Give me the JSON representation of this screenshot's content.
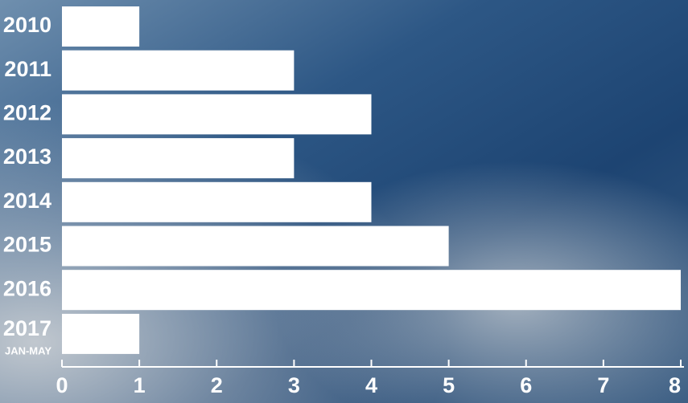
{
  "chart_data": {
    "type": "bar",
    "orientation": "horizontal",
    "categories": [
      "2010",
      "2011",
      "2012",
      "2013",
      "2014",
      "2015",
      "2016",
      "2017"
    ],
    "category_sublabels": [
      null,
      null,
      null,
      null,
      null,
      null,
      null,
      "JAN-MAY"
    ],
    "values": [
      1,
      3,
      4,
      3,
      4,
      5,
      8,
      1
    ],
    "color": "#ffffff",
    "xlim": [
      0,
      8
    ],
    "xticks": [
      0,
      1,
      2,
      3,
      4,
      5,
      6,
      7,
      8
    ],
    "grid": false
  }
}
